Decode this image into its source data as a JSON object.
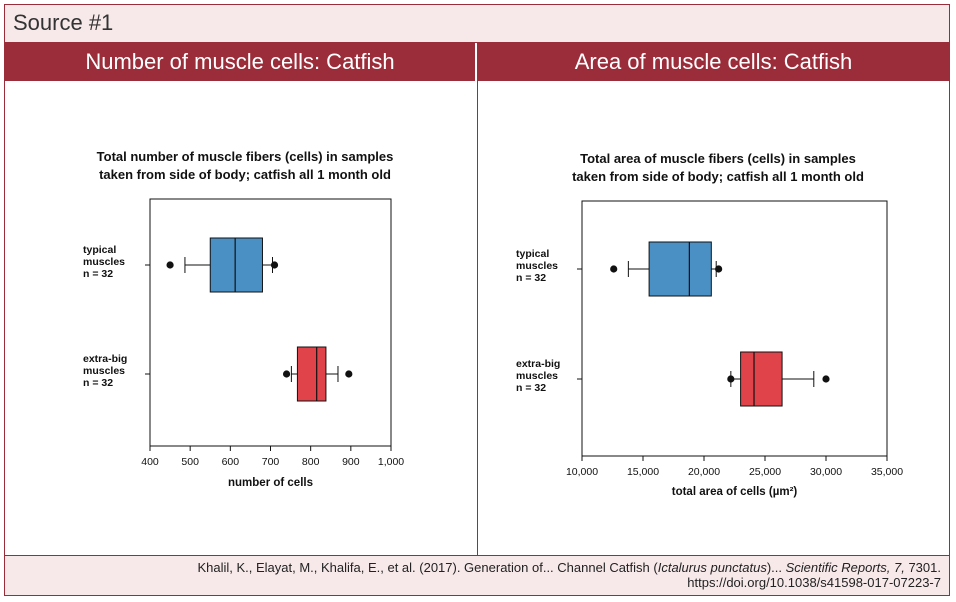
{
  "source": {
    "title": "Source #1"
  },
  "panels": [
    {
      "header": "Number of muscle cells: Catfish"
    },
    {
      "header": "Area of muscle cells: Catfish"
    }
  ],
  "chart_data": [
    {
      "type": "boxplot",
      "title_lines": [
        "Total number of muscle fibers (cells) in samples",
        "taken from side of body; catfish all 1 month old"
      ],
      "xlabel": "number of cells",
      "xlim": [
        400,
        1000
      ],
      "ticks": [
        400,
        500,
        600,
        700,
        800,
        900,
        1000
      ],
      "tick_labels": [
        "400",
        "500",
        "600",
        "700",
        "800",
        "900",
        "1,000"
      ],
      "series": [
        {
          "name": "typical muscles",
          "label_lines": [
            "typical",
            "muscles",
            "n = 32"
          ],
          "color": "#4a90c4",
          "whisker_low": 487,
          "q1": 550,
          "median": 612,
          "q3": 680,
          "whisker_high": 705,
          "outliers": [
            450,
            710
          ]
        },
        {
          "name": "extra-big muscles",
          "label_lines": [
            "extra-big",
            "muscles",
            "n = 32"
          ],
          "color": "#e0434a",
          "whisker_low": 752,
          "q1": 767,
          "median": 815,
          "q3": 838,
          "whisker_high": 868,
          "outliers": [
            740,
            895
          ]
        }
      ]
    },
    {
      "type": "boxplot",
      "title_lines": [
        "Total area of muscle fibers (cells) in samples",
        "taken from side of body; catfish all 1 month old"
      ],
      "xlabel": "total area of cells (µm²)",
      "xlim": [
        10000,
        35000
      ],
      "ticks": [
        10000,
        15000,
        20000,
        25000,
        30000,
        35000
      ],
      "tick_labels": [
        "10,000",
        "15,000",
        "20,000",
        "25,000",
        "30,000",
        "35,000"
      ],
      "series": [
        {
          "name": "typical muscles",
          "label_lines": [
            "typical",
            "muscles",
            "n = 32"
          ],
          "color": "#4a90c4",
          "whisker_low": 13800,
          "q1": 15500,
          "median": 18800,
          "q3": 20600,
          "whisker_high": 21000,
          "outliers": [
            12600,
            21200
          ]
        },
        {
          "name": "extra-big muscles",
          "label_lines": [
            "extra-big",
            "muscles",
            "n = 32"
          ],
          "color": "#e0434a",
          "whisker_low": 22200,
          "q1": 23000,
          "median": 24100,
          "q3": 26400,
          "whisker_high": 29000,
          "outliers": [
            22200,
            30000
          ]
        }
      ]
    }
  ],
  "footer": {
    "citation_prefix": "Khalil, K., Elayat, M., Khalifa, E., et al. (2017). Generation of... Channel Catfish (",
    "citation_species": "Ictalurus punctatus",
    "citation_mid": ")... ",
    "citation_journal": "Scientific Reports, 7,",
    "citation_suffix": " 7301.",
    "doi": "https://doi.org/10.1038/s41598-017-07223-7"
  }
}
